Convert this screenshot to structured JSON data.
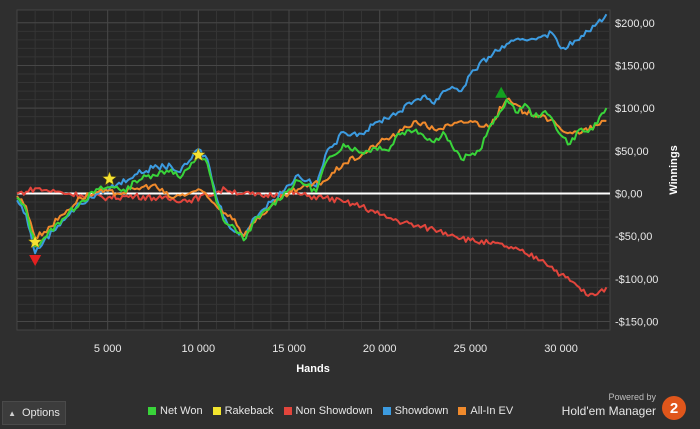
{
  "chart_data": {
    "type": "line",
    "xlabel": "Hands",
    "ylabel": "Winnings",
    "xlim": [
      0,
      32700
    ],
    "ylim": [
      -160,
      215
    ],
    "x_ticks": [
      5000,
      10000,
      15000,
      20000,
      25000,
      30000
    ],
    "x_tick_labels": [
      "5 000",
      "10 000",
      "15 000",
      "20 000",
      "25 000",
      "30 000"
    ],
    "y_ticks": [
      200,
      150,
      100,
      50,
      0,
      -50,
      -100,
      -150
    ],
    "y_tick_labels": [
      "$200,00",
      "$150,00",
      "$100,00",
      "$50,00",
      "$0,00",
      "-$50,00",
      "-$100,00",
      "-$150,00"
    ],
    "grid": true,
    "legend_position": "bottom",
    "series": [
      {
        "name": "Net Won",
        "color": "#39d43a",
        "points": [
          [
            0,
            -5
          ],
          [
            500,
            -20
          ],
          [
            1000,
            -62
          ],
          [
            1500,
            -52
          ],
          [
            2500,
            -30
          ],
          [
            3500,
            -10
          ],
          [
            4500,
            5
          ],
          [
            5500,
            8
          ],
          [
            6000,
            2
          ],
          [
            6500,
            15
          ],
          [
            7500,
            22
          ],
          [
            8500,
            28
          ],
          [
            9000,
            18
          ],
          [
            9500,
            30
          ],
          [
            10000,
            45
          ],
          [
            10500,
            35
          ],
          [
            11000,
            -10
          ],
          [
            11500,
            -35
          ],
          [
            12000,
            -40
          ],
          [
            12500,
            -55
          ],
          [
            13000,
            -35
          ],
          [
            14000,
            -15
          ],
          [
            15000,
            5
          ],
          [
            15500,
            15
          ],
          [
            16000,
            10
          ],
          [
            16500,
            2
          ],
          [
            17000,
            35
          ],
          [
            17500,
            45
          ],
          [
            18000,
            58
          ],
          [
            19000,
            48
          ],
          [
            20000,
            55
          ],
          [
            20500,
            50
          ],
          [
            21000,
            70
          ],
          [
            22000,
            75
          ],
          [
            23000,
            60
          ],
          [
            23500,
            72
          ],
          [
            24000,
            55
          ],
          [
            24500,
            40
          ],
          [
            25000,
            45
          ],
          [
            25500,
            50
          ],
          [
            26000,
            75
          ],
          [
            26500,
            90
          ],
          [
            27000,
            110
          ],
          [
            27500,
            95
          ],
          [
            28000,
            105
          ],
          [
            28500,
            90
          ],
          [
            29000,
            95
          ],
          [
            29500,
            88
          ],
          [
            30000,
            68
          ],
          [
            30500,
            58
          ],
          [
            31000,
            75
          ],
          [
            31500,
            72
          ],
          [
            32000,
            82
          ],
          [
            32500,
            100
          ]
        ]
      },
      {
        "name": "Non Showdown",
        "color": "#e2453c",
        "points": [
          [
            0,
            0
          ],
          [
            500,
            2
          ],
          [
            1000,
            6
          ],
          [
            1500,
            4
          ],
          [
            2500,
            1
          ],
          [
            3500,
            -2
          ],
          [
            5000,
            -5
          ],
          [
            6500,
            -3
          ],
          [
            8000,
            -6
          ],
          [
            9500,
            -8
          ],
          [
            10500,
            -2
          ],
          [
            11500,
            5
          ],
          [
            12500,
            0
          ],
          [
            13500,
            -3
          ],
          [
            15000,
            2
          ],
          [
            16000,
            -3
          ],
          [
            17000,
            -5
          ],
          [
            18000,
            -10
          ],
          [
            19000,
            -15
          ],
          [
            20000,
            -25
          ],
          [
            21000,
            -32
          ],
          [
            22000,
            -38
          ],
          [
            23000,
            -42
          ],
          [
            24000,
            -48
          ],
          [
            25000,
            -55
          ],
          [
            26000,
            -58
          ],
          [
            27000,
            -62
          ],
          [
            28000,
            -70
          ],
          [
            29000,
            -78
          ],
          [
            30000,
            -95
          ],
          [
            31000,
            -110
          ],
          [
            31500,
            -120
          ],
          [
            32000,
            -118
          ],
          [
            32500,
            -110
          ]
        ]
      },
      {
        "name": "Showdown",
        "color": "#3c9be0",
        "points": [
          [
            0,
            -8
          ],
          [
            500,
            -25
          ],
          [
            1000,
            -70
          ],
          [
            1500,
            -55
          ],
          [
            2500,
            -32
          ],
          [
            3500,
            -12
          ],
          [
            4500,
            0
          ],
          [
            5500,
            10
          ],
          [
            6500,
            22
          ],
          [
            7500,
            30
          ],
          [
            8500,
            32
          ],
          [
            9000,
            25
          ],
          [
            9500,
            38
          ],
          [
            10000,
            52
          ],
          [
            10500,
            40
          ],
          [
            11000,
            -5
          ],
          [
            11500,
            -30
          ],
          [
            12000,
            -45
          ],
          [
            12500,
            -50
          ],
          [
            13000,
            -30
          ],
          [
            14000,
            -10
          ],
          [
            15000,
            10
          ],
          [
            15500,
            22
          ],
          [
            16000,
            15
          ],
          [
            16500,
            8
          ],
          [
            17000,
            45
          ],
          [
            17500,
            58
          ],
          [
            18000,
            72
          ],
          [
            19000,
            70
          ],
          [
            20000,
            85
          ],
          [
            21000,
            95
          ],
          [
            22000,
            110
          ],
          [
            22500,
            115
          ],
          [
            23000,
            105
          ],
          [
            23500,
            120
          ],
          [
            24000,
            125
          ],
          [
            24500,
            120
          ],
          [
            25000,
            140
          ],
          [
            26000,
            160
          ],
          [
            27000,
            175
          ],
          [
            28000,
            180
          ],
          [
            29000,
            185
          ],
          [
            29500,
            188
          ],
          [
            30000,
            170
          ],
          [
            31000,
            180
          ],
          [
            31500,
            190
          ],
          [
            32000,
            200
          ],
          [
            32500,
            210
          ]
        ]
      },
      {
        "name": "All-In EV",
        "color": "#f08a2c",
        "points": [
          [
            0,
            -3
          ],
          [
            500,
            -15
          ],
          [
            1000,
            -52
          ],
          [
            1500,
            -45
          ],
          [
            2500,
            -25
          ],
          [
            3500,
            -5
          ],
          [
            4500,
            2
          ],
          [
            5500,
            0
          ],
          [
            6500,
            5
          ],
          [
            7500,
            10
          ],
          [
            8500,
            -5
          ],
          [
            9500,
            0
          ],
          [
            10000,
            5
          ],
          [
            11000,
            -15
          ],
          [
            12000,
            -30
          ],
          [
            12500,
            -50
          ],
          [
            13000,
            -35
          ],
          [
            14000,
            -15
          ],
          [
            15000,
            0
          ],
          [
            15500,
            5
          ],
          [
            16000,
            8
          ],
          [
            17000,
            15
          ],
          [
            18000,
            35
          ],
          [
            19000,
            45
          ],
          [
            20000,
            60
          ],
          [
            21000,
            70
          ],
          [
            22000,
            85
          ],
          [
            23000,
            75
          ],
          [
            24000,
            80
          ],
          [
            25000,
            85
          ],
          [
            26000,
            78
          ],
          [
            27000,
            110
          ],
          [
            28000,
            95
          ],
          [
            29000,
            92
          ],
          [
            30000,
            75
          ],
          [
            31000,
            70
          ],
          [
            32000,
            80
          ],
          [
            32500,
            85
          ]
        ]
      },
      {
        "name": "Rakeback",
        "color": "#f2e52e",
        "points": []
      }
    ],
    "markers": [
      {
        "type": "star",
        "color": "#f5e233",
        "x": 1000,
        "y": -57
      },
      {
        "type": "star",
        "color": "#f5e233",
        "x": 5100,
        "y": 17
      },
      {
        "type": "star",
        "color": "#f5e233",
        "x": 10000,
        "y": 45
      },
      {
        "type": "triangle-down",
        "color": "#e32020",
        "x": 1000,
        "y": -78
      },
      {
        "type": "triangle-up",
        "color": "#14a020",
        "x": 26700,
        "y": 118
      }
    ]
  },
  "footer": {
    "options_label": "Options",
    "legend": [
      {
        "label": "Net Won",
        "color": "#39d43a"
      },
      {
        "label": "Rakeback",
        "color": "#f2e52e"
      },
      {
        "label": "Non Showdown",
        "color": "#e2453c"
      },
      {
        "label": "Showdown",
        "color": "#3c9be0"
      },
      {
        "label": "All-In EV",
        "color": "#f08a2c"
      }
    ],
    "brand_powered": "Powered by",
    "brand_name": "Hold'em Manager",
    "brand_logo": "2"
  }
}
